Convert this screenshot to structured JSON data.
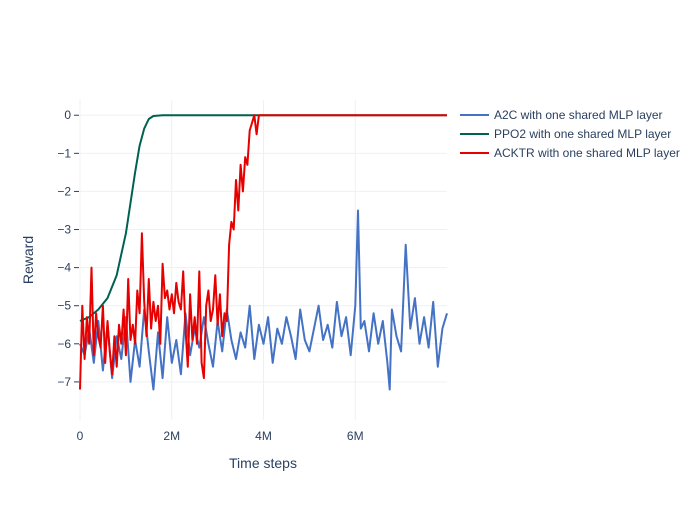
{
  "chart_data": {
    "type": "line",
    "title": "",
    "xlabel": "Time steps",
    "ylabel": "Reward",
    "xlim": [
      0,
      8000000
    ],
    "ylim": [
      -8,
      0.4
    ],
    "x_ticks": [
      {
        "value": 0,
        "label": "0"
      },
      {
        "value": 2000000,
        "label": "2M"
      },
      {
        "value": 4000000,
        "label": "4M"
      },
      {
        "value": 6000000,
        "label": "6M"
      }
    ],
    "y_ticks": [
      {
        "value": 0,
        "label": "0"
      },
      {
        "value": -1,
        "label": "−1"
      },
      {
        "value": -2,
        "label": "−2"
      },
      {
        "value": -3,
        "label": "−3"
      },
      {
        "value": -4,
        "label": "−4"
      },
      {
        "value": -5,
        "label": "−5"
      },
      {
        "value": -6,
        "label": "−6"
      },
      {
        "value": -7,
        "label": "−7"
      }
    ],
    "grid": true,
    "legend_position": "top-right",
    "series": [
      {
        "name": "A2C with one shared MLP layer",
        "color": "#4472c4",
        "points": [
          [
            0,
            -6.0
          ],
          [
            100000,
            -6.3
          ],
          [
            200000,
            -5.6
          ],
          [
            300000,
            -6.5
          ],
          [
            400000,
            -5.4
          ],
          [
            500000,
            -6.7
          ],
          [
            600000,
            -5.5
          ],
          [
            700000,
            -6.9
          ],
          [
            800000,
            -5.8
          ],
          [
            900000,
            -6.4
          ],
          [
            1000000,
            -5.3
          ],
          [
            1100000,
            -7.0
          ],
          [
            1200000,
            -5.9
          ],
          [
            1300000,
            -6.6
          ],
          [
            1400000,
            -5.1
          ],
          [
            1500000,
            -6.2
          ],
          [
            1600000,
            -7.2
          ],
          [
            1700000,
            -5.7
          ],
          [
            1800000,
            -6.9
          ],
          [
            1900000,
            -5.3
          ],
          [
            2000000,
            -6.5
          ],
          [
            2100000,
            -5.9
          ],
          [
            2200000,
            -6.8
          ],
          [
            2300000,
            -5.2
          ],
          [
            2400000,
            -6.3
          ],
          [
            2500000,
            -5.6
          ],
          [
            2600000,
            -6.1
          ],
          [
            2700000,
            -5.3
          ],
          [
            2800000,
            -6.0
          ],
          [
            2900000,
            -6.6
          ],
          [
            3000000,
            -5.4
          ],
          [
            3100000,
            -6.2
          ],
          [
            3200000,
            -5.1
          ],
          [
            3300000,
            -5.9
          ],
          [
            3400000,
            -6.4
          ],
          [
            3500000,
            -5.7
          ],
          [
            3600000,
            -6.1
          ],
          [
            3700000,
            -5.0
          ],
          [
            3800000,
            -6.4
          ],
          [
            3900000,
            -5.5
          ],
          [
            4000000,
            -6.0
          ],
          [
            4100000,
            -5.3
          ],
          [
            4200000,
            -6.5
          ],
          [
            4300000,
            -5.6
          ],
          [
            4400000,
            -6.0
          ],
          [
            4500000,
            -5.3
          ],
          [
            4600000,
            -5.8
          ],
          [
            4700000,
            -6.4
          ],
          [
            4800000,
            -5.1
          ],
          [
            4900000,
            -5.9
          ],
          [
            5000000,
            -6.2
          ],
          [
            5100000,
            -5.6
          ],
          [
            5200000,
            -5.0
          ],
          [
            5300000,
            -5.9
          ],
          [
            5400000,
            -5.5
          ],
          [
            5500000,
            -6.1
          ],
          [
            5600000,
            -4.9
          ],
          [
            5700000,
            -5.8
          ],
          [
            5800000,
            -5.3
          ],
          [
            5900000,
            -6.3
          ],
          [
            6000000,
            -5.0
          ],
          [
            6060000,
            -2.5
          ],
          [
            6120000,
            -5.6
          ],
          [
            6200000,
            -5.4
          ],
          [
            6300000,
            -6.2
          ],
          [
            6400000,
            -5.2
          ],
          [
            6500000,
            -6.0
          ],
          [
            6600000,
            -5.4
          ],
          [
            6700000,
            -6.5
          ],
          [
            6750000,
            -7.2
          ],
          [
            6800000,
            -5.1
          ],
          [
            6900000,
            -5.8
          ],
          [
            7000000,
            -6.2
          ],
          [
            7100000,
            -3.4
          ],
          [
            7200000,
            -5.6
          ],
          [
            7300000,
            -4.8
          ],
          [
            7400000,
            -6.0
          ],
          [
            7500000,
            -5.3
          ],
          [
            7600000,
            -6.1
          ],
          [
            7700000,
            -4.9
          ],
          [
            7800000,
            -6.6
          ],
          [
            7900000,
            -5.6
          ],
          [
            8000000,
            -5.2
          ]
        ]
      },
      {
        "name": "PPO2 with one shared MLP layer",
        "color": "#006150",
        "points": [
          [
            0,
            -5.4
          ],
          [
            200000,
            -5.3
          ],
          [
            400000,
            -5.1
          ],
          [
            600000,
            -4.8
          ],
          [
            800000,
            -4.2
          ],
          [
            1000000,
            -3.1
          ],
          [
            1100000,
            -2.3
          ],
          [
            1200000,
            -1.5
          ],
          [
            1300000,
            -0.8
          ],
          [
            1400000,
            -0.35
          ],
          [
            1500000,
            -0.1
          ],
          [
            1600000,
            -0.02
          ],
          [
            1800000,
            0.0
          ],
          [
            2500000,
            0.0
          ],
          [
            4000000,
            0.0
          ],
          [
            6000000,
            0.0
          ],
          [
            8000000,
            0.0
          ]
        ]
      },
      {
        "name": "ACKTR with one shared MLP layer",
        "color": "#e60000",
        "points": [
          [
            0,
            -7.2
          ],
          [
            50000,
            -5.0
          ],
          [
            100000,
            -6.4
          ],
          [
            150000,
            -5.3
          ],
          [
            200000,
            -6.0
          ],
          [
            250000,
            -4.0
          ],
          [
            300000,
            -6.3
          ],
          [
            350000,
            -5.2
          ],
          [
            400000,
            -5.8
          ],
          [
            450000,
            -6.1
          ],
          [
            500000,
            -5.0
          ],
          [
            550000,
            -6.5
          ],
          [
            600000,
            -5.4
          ],
          [
            650000,
            -6.2
          ],
          [
            700000,
            -6.8
          ],
          [
            750000,
            -5.8
          ],
          [
            800000,
            -6.6
          ],
          [
            850000,
            -5.5
          ],
          [
            900000,
            -6.0
          ],
          [
            950000,
            -5.1
          ],
          [
            1000000,
            -6.3
          ],
          [
            1050000,
            -4.3
          ],
          [
            1100000,
            -5.9
          ],
          [
            1150000,
            -5.5
          ],
          [
            1200000,
            -6.0
          ],
          [
            1250000,
            -4.6
          ],
          [
            1300000,
            -5.2
          ],
          [
            1350000,
            -3.1
          ],
          [
            1400000,
            -4.9
          ],
          [
            1450000,
            -5.8
          ],
          [
            1500000,
            -4.3
          ],
          [
            1550000,
            -5.6
          ],
          [
            1600000,
            -4.9
          ],
          [
            1650000,
            -5.4
          ],
          [
            1700000,
            -5.0
          ],
          [
            1750000,
            -6.0
          ],
          [
            1800000,
            -3.9
          ],
          [
            1850000,
            -4.8
          ],
          [
            1900000,
            -4.6
          ],
          [
            1950000,
            -5.1
          ],
          [
            2000000,
            -4.7
          ],
          [
            2050000,
            -5.2
          ],
          [
            2100000,
            -4.4
          ],
          [
            2150000,
            -4.9
          ],
          [
            2200000,
            -5.1
          ],
          [
            2250000,
            -4.1
          ],
          [
            2300000,
            -5.6
          ],
          [
            2350000,
            -6.6
          ],
          [
            2400000,
            -4.7
          ],
          [
            2450000,
            -5.9
          ],
          [
            2500000,
            -5.3
          ],
          [
            2550000,
            -6.0
          ],
          [
            2600000,
            -4.1
          ],
          [
            2650000,
            -6.5
          ],
          [
            2700000,
            -6.9
          ],
          [
            2750000,
            -5.0
          ],
          [
            2800000,
            -4.6
          ],
          [
            2850000,
            -5.4
          ],
          [
            2900000,
            -5.1
          ],
          [
            2950000,
            -4.2
          ],
          [
            3000000,
            -5.5
          ],
          [
            3050000,
            -4.7
          ],
          [
            3100000,
            -5.8
          ],
          [
            3150000,
            -5.2
          ],
          [
            3200000,
            -5.4
          ],
          [
            3250000,
            -3.4
          ],
          [
            3300000,
            -2.8
          ],
          [
            3350000,
            -3.0
          ],
          [
            3400000,
            -1.7
          ],
          [
            3450000,
            -2.5
          ],
          [
            3500000,
            -1.3
          ],
          [
            3550000,
            -2.0
          ],
          [
            3600000,
            -1.1
          ],
          [
            3650000,
            -1.3
          ],
          [
            3700000,
            -0.4
          ],
          [
            3750000,
            -0.2
          ],
          [
            3800000,
            0.0
          ],
          [
            3850000,
            -0.5
          ],
          [
            3900000,
            0.0
          ],
          [
            4000000,
            0.0
          ],
          [
            6000000,
            0.0
          ],
          [
            8000000,
            0.0
          ]
        ]
      }
    ]
  }
}
